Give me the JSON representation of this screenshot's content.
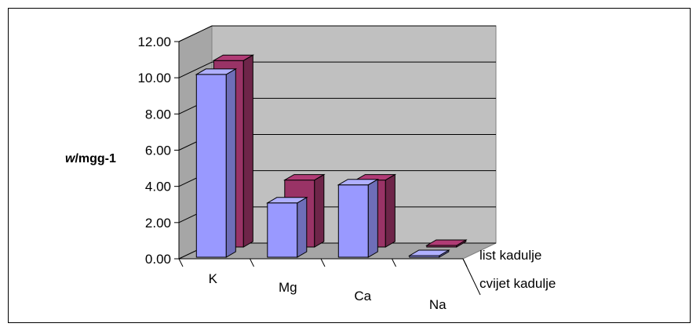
{
  "chart_data": {
    "type": "bar",
    "variant": "3d-clustered-columns",
    "title": "",
    "xlabel": "",
    "ylabel": {
      "italic": "w",
      "rest": "/mgg-1"
    },
    "categories": [
      "K",
      "Mg",
      "Ca",
      "Na"
    ],
    "series": [
      {
        "name": "cvijet kadulje",
        "values": [
          10.1,
          3.0,
          4.0,
          0.05
        ],
        "color": "#9999ff"
      },
      {
        "name": "list kadulje",
        "values": [
          10.3,
          3.7,
          3.7,
          0.05
        ],
        "color": "#993366"
      }
    ],
    "ylim": [
      0,
      12
    ],
    "yticks": [
      "0.00",
      "2.00",
      "4.00",
      "6.00",
      "8.00",
      "10.00",
      "12.00"
    ],
    "grid": true,
    "background_colors": {
      "back_wall": "#c0c0c0",
      "side_wall": "#a6a6a6",
      "floor": "#a6a6a6"
    }
  }
}
